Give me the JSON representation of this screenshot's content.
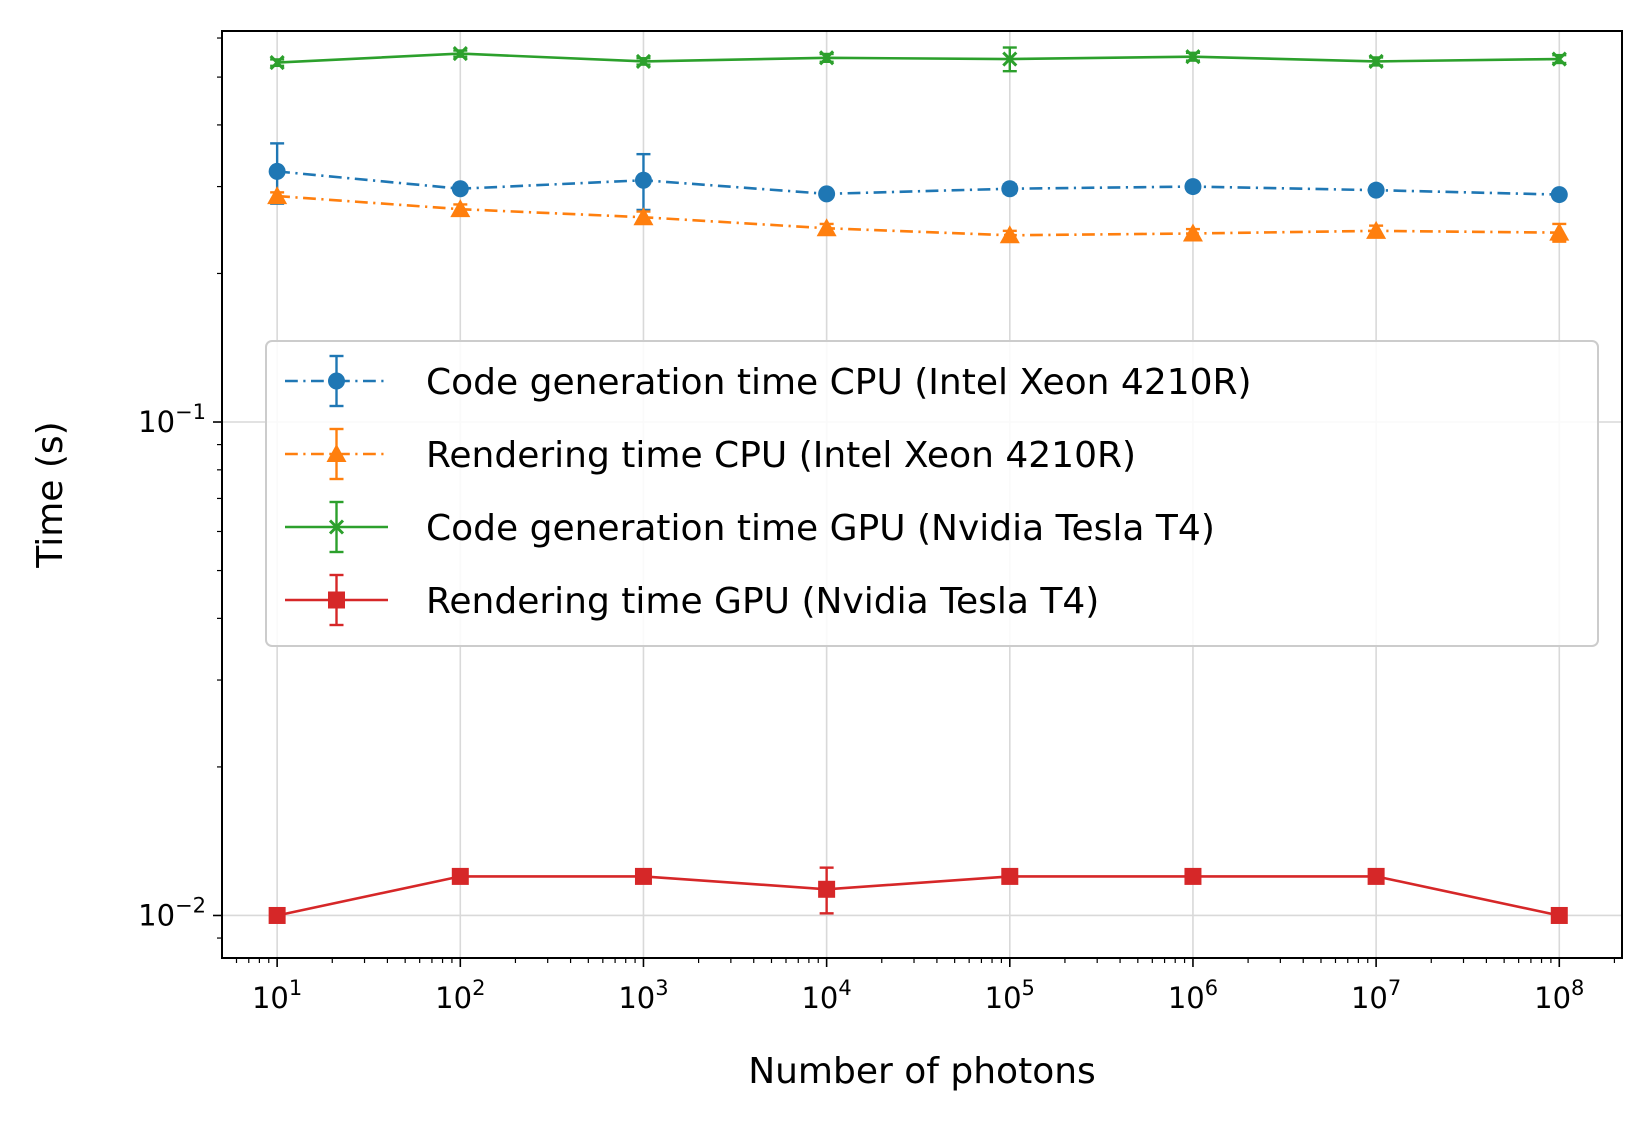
{
  "chart_data": {
    "type": "line",
    "xscale": "log",
    "yscale": "log",
    "xlabel": "Number of photons",
    "ylabel": "Time (s)",
    "xlim": [
      5,
      220000000
    ],
    "ylim": [
      0.0082,
      0.62
    ],
    "grid": true,
    "legend_position": "center-right",
    "x": [
      10,
      100,
      1000,
      10000,
      100000,
      1000000,
      10000000,
      100000000
    ],
    "x_ticks": [
      {
        "value": 10,
        "base": "10",
        "exp": "1"
      },
      {
        "value": 100,
        "base": "10",
        "exp": "2"
      },
      {
        "value": 1000,
        "base": "10",
        "exp": "3"
      },
      {
        "value": 10000,
        "base": "10",
        "exp": "4"
      },
      {
        "value": 100000,
        "base": "10",
        "exp": "5"
      },
      {
        "value": 1000000,
        "base": "10",
        "exp": "6"
      },
      {
        "value": 10000000,
        "base": "10",
        "exp": "7"
      },
      {
        "value": 100000000,
        "base": "10",
        "exp": "8"
      }
    ],
    "y_ticks": [
      {
        "value": 0.1,
        "base": "10",
        "exp": "−1"
      },
      {
        "value": 0.01,
        "base": "10",
        "exp": "−2"
      }
    ],
    "series": [
      {
        "name": "Code generation time CPU (Intel Xeon 4210R)",
        "color": "#1f77b4",
        "linestyle": "dashdot",
        "marker": "circle",
        "values": [
          0.322,
          0.297,
          0.309,
          0.29,
          0.297,
          0.3,
          0.295,
          0.289
        ],
        "errors": [
          0.045,
          0.005,
          0.04,
          0.004,
          0.006,
          0.004,
          0.004,
          0.004
        ]
      },
      {
        "name": "Rendering time CPU (Intel Xeon 4210R)",
        "color": "#ff7f0e",
        "linestyle": "dashdot",
        "marker": "triangle",
        "values": [
          0.287,
          0.27,
          0.26,
          0.247,
          0.239,
          0.241,
          0.244,
          0.242
        ],
        "errors": [
          0.005,
          0.006,
          0.007,
          0.005,
          0.005,
          0.005,
          0.006,
          0.01
        ]
      },
      {
        "name": "Code generation time GPU (Nvidia Tesla T4)",
        "color": "#2ca02c",
        "linestyle": "solid",
        "marker": "x",
        "values": [
          0.535,
          0.558,
          0.538,
          0.547,
          0.544,
          0.55,
          0.538,
          0.544
        ],
        "errors": [
          0.008,
          0.008,
          0.008,
          0.01,
          0.03,
          0.01,
          0.01,
          0.01
        ]
      },
      {
        "name": "Rendering time GPU (Nvidia Tesla T4)",
        "color": "#d62728",
        "linestyle": "solid",
        "marker": "square",
        "values": [
          0.01,
          0.012,
          0.012,
          0.0113,
          0.012,
          0.012,
          0.012,
          0.01
        ],
        "errors": [
          0.0002,
          0.0002,
          0.0002,
          0.0012,
          0.0002,
          0.0002,
          0.0002,
          0.0002
        ]
      }
    ]
  }
}
